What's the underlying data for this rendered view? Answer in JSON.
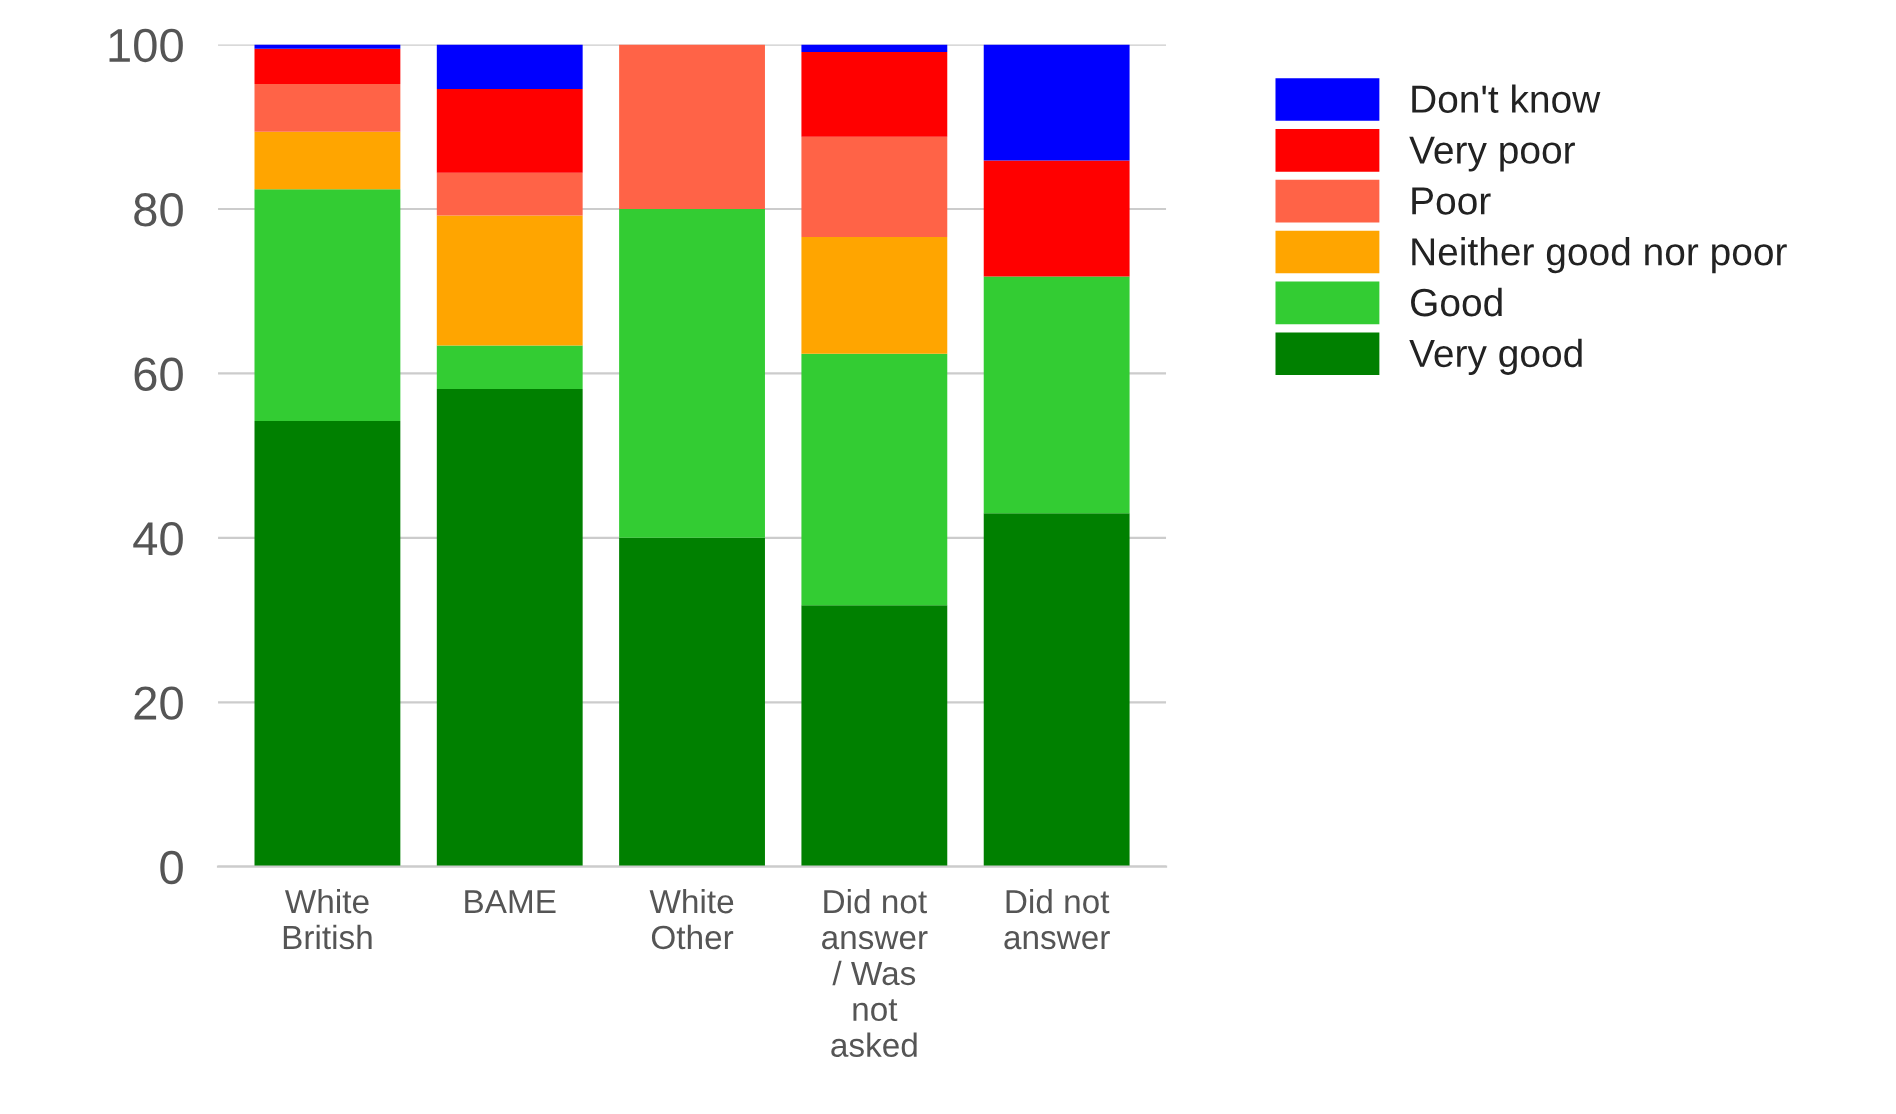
{
  "chart_data": {
    "type": "bar",
    "stacked": true,
    "categories": [
      "White\nBritish",
      "BAME",
      "White\nOther",
      "Did not\nanswer\n/ Was\nnot\nasked",
      "Did not\nanswer"
    ],
    "series": [
      {
        "name": "Very good",
        "color": "#008000",
        "values": [
          54.2,
          58.1,
          40.0,
          31.8,
          43.0
        ]
      },
      {
        "name": "Good",
        "color": "#33cc33",
        "values": [
          28.2,
          5.3,
          40.0,
          30.6,
          28.8
        ]
      },
      {
        "name": "Neither good nor poor",
        "color": "#ffa500",
        "values": [
          7.0,
          15.8,
          0,
          14.2,
          0
        ]
      },
      {
        "name": "Poor",
        "color": "#ff6347",
        "values": [
          5.8,
          5.2,
          20.0,
          12.2,
          0
        ]
      },
      {
        "name": "Very poor",
        "color": "#ff0000",
        "values": [
          4.3,
          10.2,
          0,
          10.3,
          14.1
        ]
      },
      {
        "name": "Don't know",
        "color": "#0000ff",
        "values": [
          0.5,
          5.4,
          0,
          0.9,
          14.1
        ]
      }
    ],
    "ylim": [
      0,
      100
    ],
    "yticks": [
      0,
      20,
      40,
      60,
      80,
      100
    ],
    "grid": "y",
    "legend": "top right"
  }
}
